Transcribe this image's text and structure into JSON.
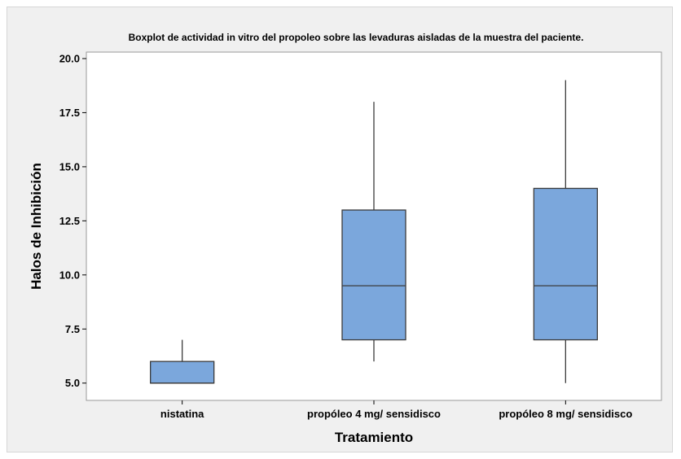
{
  "chart_data": {
    "type": "boxplot",
    "title": "Boxplot de actividad in vitro del propoleo sobre las levaduras aisladas de la muestra del paciente.",
    "xlabel": "Tratamiento",
    "ylabel": "Halos de Inhibición",
    "ylim": [
      4.2,
      20.3
    ],
    "yticks": [
      5.0,
      7.5,
      10.0,
      12.5,
      15.0,
      17.5,
      20.0
    ],
    "ytick_labels": [
      "5.0",
      "7.5",
      "10.0",
      "12.5",
      "15.0",
      "17.5",
      "20.0"
    ],
    "grid": false,
    "categories": [
      "nistatina",
      "propóleo 4 mg/ sensidisco",
      "propóleo 8 mg/ sensidisco"
    ],
    "boxes": [
      {
        "min": 5.0,
        "q1": 5.0,
        "median": 5.0,
        "q3": 6.0,
        "max": 7.0
      },
      {
        "min": 6.0,
        "q1": 7.0,
        "median": 9.5,
        "q3": 13.0,
        "max": 18.0
      },
      {
        "min": 5.0,
        "q1": 7.0,
        "median": 9.5,
        "q3": 14.0,
        "max": 19.0
      }
    ],
    "colors": {
      "box_fill": "#7ba7dc",
      "box_stroke": "#3b3b3b",
      "plot_bg": "#ffffff",
      "frame_bg": "#f0f0f0"
    }
  }
}
